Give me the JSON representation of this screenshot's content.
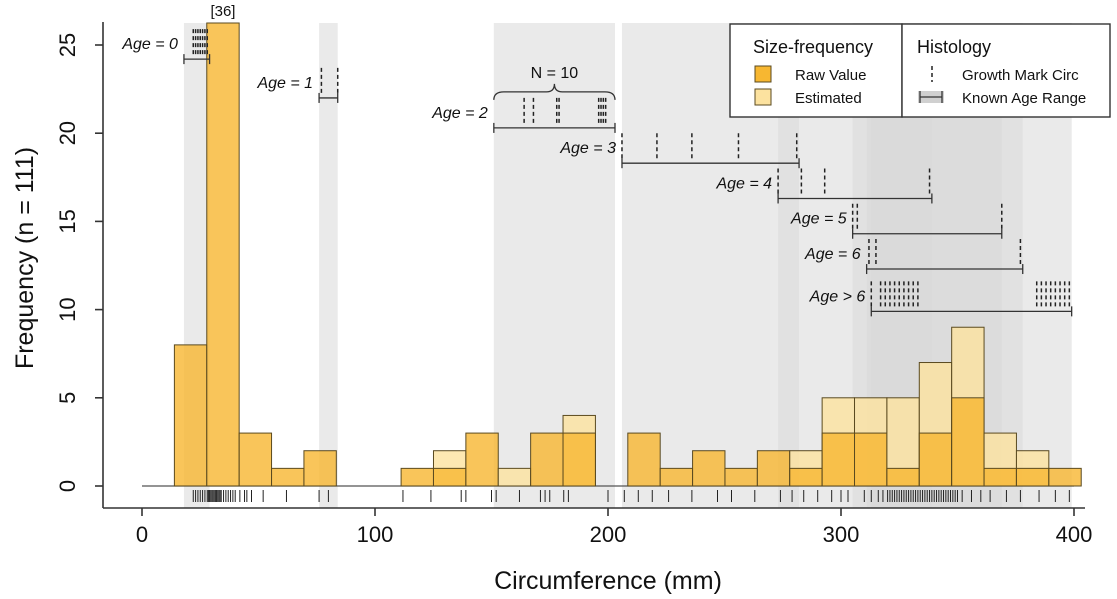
{
  "chart_data": {
    "type": "bar",
    "xlabel": "Circumference (mm)",
    "ylabel": "Frequency (n = 111)",
    "xlim": [
      0,
      400
    ],
    "ylim": [
      0,
      25
    ],
    "xticks": [
      0,
      100,
      200,
      300,
      400
    ],
    "yticks": [
      0,
      5,
      10,
      15,
      20,
      25
    ],
    "bin_width": 13.9,
    "bins": [
      {
        "x0": 13.9,
        "x1": 27.8,
        "raw": 8,
        "estimated": 0
      },
      {
        "x0": 27.8,
        "x1": 41.7,
        "raw": 36,
        "estimated": 0
      },
      {
        "x0": 41.7,
        "x1": 55.6,
        "raw": 3,
        "estimated": 0
      },
      {
        "x0": 55.6,
        "x1": 69.5,
        "raw": 1,
        "estimated": 0
      },
      {
        "x0": 69.5,
        "x1": 83.4,
        "raw": 2,
        "estimated": 0
      },
      {
        "x0": 111.2,
        "x1": 125.1,
        "raw": 1,
        "estimated": 0
      },
      {
        "x0": 125.1,
        "x1": 139.0,
        "raw": 1,
        "estimated": 1
      },
      {
        "x0": 139.0,
        "x1": 152.9,
        "raw": 3,
        "estimated": 0
      },
      {
        "x0": 152.9,
        "x1": 166.8,
        "raw": 0,
        "estimated": 1
      },
      {
        "x0": 166.8,
        "x1": 180.7,
        "raw": 3,
        "estimated": 0
      },
      {
        "x0": 180.7,
        "x1": 194.6,
        "raw": 3,
        "estimated": 1
      },
      {
        "x0": 208.5,
        "x1": 222.4,
        "raw": 3,
        "estimated": 0
      },
      {
        "x0": 222.4,
        "x1": 236.3,
        "raw": 1,
        "estimated": 0
      },
      {
        "x0": 236.3,
        "x1": 250.2,
        "raw": 2,
        "estimated": 0
      },
      {
        "x0": 250.2,
        "x1": 264.1,
        "raw": 1,
        "estimated": 0
      },
      {
        "x0": 264.1,
        "x1": 278.0,
        "raw": 2,
        "estimated": 0
      },
      {
        "x0": 278.0,
        "x1": 291.9,
        "raw": 1,
        "estimated": 1
      },
      {
        "x0": 291.9,
        "x1": 305.8,
        "raw": 3,
        "estimated": 2
      },
      {
        "x0": 305.8,
        "x1": 319.7,
        "raw": 3,
        "estimated": 2
      },
      {
        "x0": 319.7,
        "x1": 333.6,
        "raw": 1,
        "estimated": 4
      },
      {
        "x0": 333.6,
        "x1": 347.5,
        "raw": 3,
        "estimated": 4
      },
      {
        "x0": 347.5,
        "x1": 361.4,
        "raw": 5,
        "estimated": 4
      },
      {
        "x0": 361.4,
        "x1": 375.3,
        "raw": 1,
        "estimated": 2
      },
      {
        "x0": 375.3,
        "x1": 389.2,
        "raw": 1,
        "estimated": 1
      },
      {
        "x0": 389.2,
        "x1": 403.1,
        "raw": 1,
        "estimated": 0
      }
    ],
    "truncated_bar_label": "[36]",
    "rug": [
      22,
      23,
      24,
      25,
      26,
      27,
      28,
      28.5,
      29,
      29.5,
      30,
      30.5,
      31,
      31.5,
      32,
      32.5,
      33,
      33.5,
      34,
      35,
      36,
      37,
      38,
      39,
      40,
      42,
      44,
      45,
      47,
      52,
      62,
      76,
      80,
      112,
      124,
      137,
      139,
      150,
      152,
      162,
      171,
      173,
      175,
      181,
      183,
      200,
      207,
      213,
      219,
      226,
      236,
      247,
      253,
      263,
      274,
      279,
      284,
      290,
      296,
      300,
      303,
      310,
      313,
      316,
      318,
      320,
      321,
      322,
      323,
      324,
      325,
      326,
      327,
      328,
      329,
      330,
      331,
      332,
      333,
      334,
      335,
      336,
      337,
      338,
      339,
      340,
      341,
      342,
      343,
      344,
      345,
      346,
      347,
      348,
      349,
      350,
      352,
      356,
      360,
      364,
      371,
      377,
      385,
      392,
      398
    ],
    "age_ranges": [
      {
        "label": "Age = 0",
        "x0": 18,
        "x1": 29,
        "y": 24.2,
        "marks": [
          22,
          23,
          24,
          25,
          26,
          27,
          28
        ]
      },
      {
        "label": "Age =  1",
        "x0": 76,
        "x1": 84,
        "y": 22,
        "marks": [
          77,
          84
        ]
      },
      {
        "label": "Age = 2",
        "x0": 151,
        "x1": 203,
        "y": 20.3,
        "marks": [
          164,
          168,
          178,
          179,
          196,
          197,
          198,
          199
        ],
        "brace_label": "N = 10"
      },
      {
        "label": "Age = 3",
        "x0": 206,
        "x1": 282,
        "y": 18.3,
        "marks": [
          206,
          221,
          236,
          256,
          281
        ]
      },
      {
        "label": "Age = 4",
        "x0": 273,
        "x1": 339,
        "y": 16.3,
        "marks": [
          273,
          283,
          293,
          338
        ]
      },
      {
        "label": "Age = 5",
        "x0": 305,
        "x1": 369,
        "y": 14.3,
        "marks": [
          305,
          307,
          369
        ]
      },
      {
        "label": "Age = 6",
        "x0": 311,
        "x1": 378,
        "y": 12.3,
        "marks": [
          312,
          315,
          377
        ]
      },
      {
        "label": "Age > 6",
        "x0": 313,
        "x1": 399,
        "y": 9.9,
        "marks": [
          313,
          317,
          319,
          321,
          323,
          325,
          327,
          329,
          331,
          333,
          384,
          386,
          388,
          390,
          392,
          394,
          396,
          398
        ]
      }
    ],
    "colors": {
      "raw": "#f7b731",
      "estimated": "#fce29f",
      "shade": "#d8d8d8",
      "bar_stroke": "#5a4a20"
    },
    "legend_placement": "top-right",
    "legend": {
      "size_frequency": {
        "title": "Size-frequency",
        "items": [
          "Raw Value",
          "Estimated"
        ]
      },
      "histology": {
        "title": "Histology",
        "items": [
          "Growth Mark Circ",
          "Known Age Range"
        ]
      }
    }
  }
}
